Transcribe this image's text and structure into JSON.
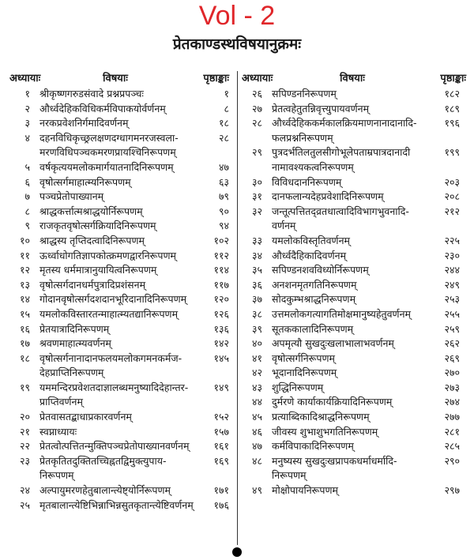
{
  "volume": "Vol - 2",
  "subtitle": "प्रेतकाण्डस्थविषयानुक्रमः",
  "headers": {
    "chapter": "अध्यायाः",
    "subject": "विषयाः",
    "page": "पृष्ठाङ्काः"
  },
  "left": [
    {
      "n": "१",
      "lines": [
        "श्रीकृष्णगरुडसंवादे प्रश्नप्रपञ्चः"
      ],
      "p": "१"
    },
    {
      "n": "२",
      "lines": [
        "और्ध्वदेहिकविधिकर्मविपाकयोर्वर्णनम्"
      ],
      "p": "८"
    },
    {
      "n": "३",
      "lines": [
        "नरकप्रवेशनिर्गमादिवर्णनम्"
      ],
      "p": "१८"
    },
    {
      "n": "४",
      "lines": [
        "दहनविधिकृच्छ्रलक्षणदग्धागमनरजस्वला-",
        "मरणविधिपञ्चकमरणप्रायश्चिनिरूपणम्"
      ],
      "p": "२८"
    },
    {
      "n": "५",
      "lines": [
        "वर्षकृत्ययमलोकमार्गयातनादिनिरूपणम्"
      ],
      "p": "४७"
    },
    {
      "n": "६",
      "lines": [
        "वृषोत्सर्गमाहात्म्यनिरूपणम्"
      ],
      "p": "६३"
    },
    {
      "n": "७",
      "lines": [
        "पञ्चप्रेतोपाख्यानम्"
      ],
      "p": "७९"
    },
    {
      "n": "८",
      "lines": [
        "श्राद्धकर्त्तात्मश्राद्धयोर्निरूपणम्"
      ],
      "p": "९०"
    },
    {
      "n": "९",
      "lines": [
        "राजकृतवृषोत्सर्गक्रियादिनिरूपणम्"
      ],
      "p": "९४"
    },
    {
      "n": "१०",
      "lines": [
        "श्राद्धस्य तृप्तिदत्वादिनिरूपणम्"
      ],
      "p": "१०२"
    },
    {
      "n": "११",
      "lines": [
        "ऊर्ध्वाधोगतिज्ञापकोत्क्रमणद्वारनिरूपणम्"
      ],
      "p": "११२"
    },
    {
      "n": "१२",
      "lines": [
        "मृतस्य धर्ममात्रानुयायित्वनिरूपणम्"
      ],
      "p": "११४"
    },
    {
      "n": "१३",
      "lines": [
        "वृषोत्सर्गदानधर्मपुत्रादिप्रशंसनम्"
      ],
      "p": "११७"
    },
    {
      "n": "१४",
      "lines": [
        "गोदानवृषोत्सर्गदशदानभूरिदानादिनिरूपणम्"
      ],
      "p": "१२०"
    },
    {
      "n": "१५",
      "lines": [
        "यमलोकविस्तारतन्माहात्म्यतद्यानिरूपणम्"
      ],
      "p": "१२६"
    },
    {
      "n": "१६",
      "lines": [
        "प्रेतयात्रादिनिरूपणम्"
      ],
      "p": "१३६"
    },
    {
      "n": "१७",
      "lines": [
        "श्रवणमाहात्म्यवर्णनम्"
      ],
      "p": "१४२"
    },
    {
      "n": "१८",
      "lines": [
        "वृषोत्सर्गनानादानफलयमलोकगमनकर्मज-",
        "देहप्राप्तिनिरूपणम्"
      ],
      "p": "१४५"
    },
    {
      "n": "१९",
      "lines": [
        "यममन्दिरप्रवेशतदाज्ञालब्धमनुष्यादिदेहान्तर-",
        "प्राप्तिवर्णनम्"
      ],
      "p": "१४९"
    },
    {
      "n": "२०",
      "lines": [
        "प्रेतवासतद्बाधाप्रकारवर्णनम्"
      ],
      "p": "१५२"
    },
    {
      "n": "२१",
      "lines": [
        "स्वप्नाध्यायः"
      ],
      "p": "१५७"
    },
    {
      "n": "२२",
      "lines": [
        "प्रेतत्वोत्पत्तितन्मुक्तिपञ्चप्रेतोपाख्यानवर्णनम्"
      ],
      "p": "१६१"
    },
    {
      "n": "२३",
      "lines": [
        "प्रेतकृतितदुक्तितच्चिह्नतद्विमुक्त्युपाय-",
        "निरूपणम्"
      ],
      "p": "१६९"
    },
    {
      "n": "२४",
      "lines": [
        "अल्पायुमरणहेतुबालान्त्येष्ट्योर्निरूपणम्"
      ],
      "p": "१७१"
    },
    {
      "n": "२५",
      "lines": [
        "मृतबालान्त्येष्टिभिन्नाभिन्नसुतकृतान्त्येष्टिवर्णनम्"
      ],
      "p": "१७६"
    }
  ],
  "right": [
    {
      "n": "२६",
      "lines": [
        "सपिण्डननिरूपणम्"
      ],
      "p": "१८२"
    },
    {
      "n": "२७",
      "lines": [
        "प्रेतत्वहेतुतन्निवृत्त्युपायवर्णनम्"
      ],
      "p": "१८९"
    },
    {
      "n": "२८",
      "lines": [
        "और्ध्वदेहिककर्मकालक्रियमाणनानादानादि-",
        "फलप्रश्ननिरूपणम्"
      ],
      "p": "१९६"
    },
    {
      "n": "२९",
      "lines": [
        "पुत्रदर्भतिलतुलसीगोभूलेपताम्रपात्रदानादी",
        "नामावश्यकत्वनिरूपणम्"
      ],
      "p": "१९९"
    },
    {
      "n": "३०",
      "lines": [
        "विविधदाननिरूपणम्"
      ],
      "p": "२०३"
    },
    {
      "n": "३१",
      "lines": [
        "दानफलान्यदेहप्रवेशादिनिरूपणम्"
      ],
      "p": "२०८"
    },
    {
      "n": "३२",
      "lines": [
        "जन्तूत्पत्तितद्व्रतधात्वादिविभागभुवनादि-",
        "वर्णनम्"
      ],
      "p": "२१२"
    },
    {
      "n": "३३",
      "lines": [
        "यमलोकविस्तृतिवर्णनम्"
      ],
      "p": "२२५"
    },
    {
      "n": "३४",
      "lines": [
        "और्ध्वदैहिकादिवर्णनम्"
      ],
      "p": "२३०"
    },
    {
      "n": "३५",
      "lines": [
        "सपिण्डनशवविध्योर्निरूपणम्"
      ],
      "p": "२४४"
    },
    {
      "n": "३६",
      "lines": [
        "अनशनमृतगतिनिरूपणम्"
      ],
      "p": "२४९"
    },
    {
      "n": "३७",
      "lines": [
        "सोदकुम्भश्राद्धनिरूपणम्"
      ],
      "p": "२५३"
    },
    {
      "n": "३८",
      "lines": [
        "उत्तमलोकगत्यागतिमोक्षमानुष्यहेतुवर्णनम्"
      ],
      "p": "२५५"
    },
    {
      "n": "३९",
      "lines": [
        "सूतककालादिनिरूपणम्"
      ],
      "p": "२५९"
    },
    {
      "n": "४०",
      "lines": [
        "अपमृत्यौ सुखदुःखलाभालाभवर्णनम्"
      ],
      "p": "२६२"
    },
    {
      "n": "४१",
      "lines": [
        "वृषोत्सर्गनिरूपणम्"
      ],
      "p": "२६९"
    },
    {
      "n": "४२",
      "lines": [
        "भूदानादिनिरूपणम्"
      ],
      "p": "२७०"
    },
    {
      "n": "४३",
      "lines": [
        "शुद्धिनिरूपणम्"
      ],
      "p": "२७३"
    },
    {
      "n": "४४",
      "lines": [
        "दुर्मरणे कार्याकार्यक्रियादिनिरूपणम्"
      ],
      "p": "२७४"
    },
    {
      "n": "४५",
      "lines": [
        "प्रत्याब्दिकादिश्राद्धनिरूपणम्"
      ],
      "p": "२७७"
    },
    {
      "n": "४६",
      "lines": [
        "जीवस्य शुभाशुभगतिनिरूपणम्"
      ],
      "p": "२८१"
    },
    {
      "n": "४७",
      "lines": [
        "कर्मविपाकादिनिरूपणम्"
      ],
      "p": "२८५"
    },
    {
      "n": "४८",
      "lines": [
        "मनुष्यस्य सुखदुःखप्रापकधर्माधर्मादि-",
        "निरूपणम्"
      ],
      "p": "२९०"
    },
    {
      "n": "४९",
      "lines": [
        "मोक्षोपायनिरूपणम्"
      ],
      "p": "२९७"
    }
  ]
}
